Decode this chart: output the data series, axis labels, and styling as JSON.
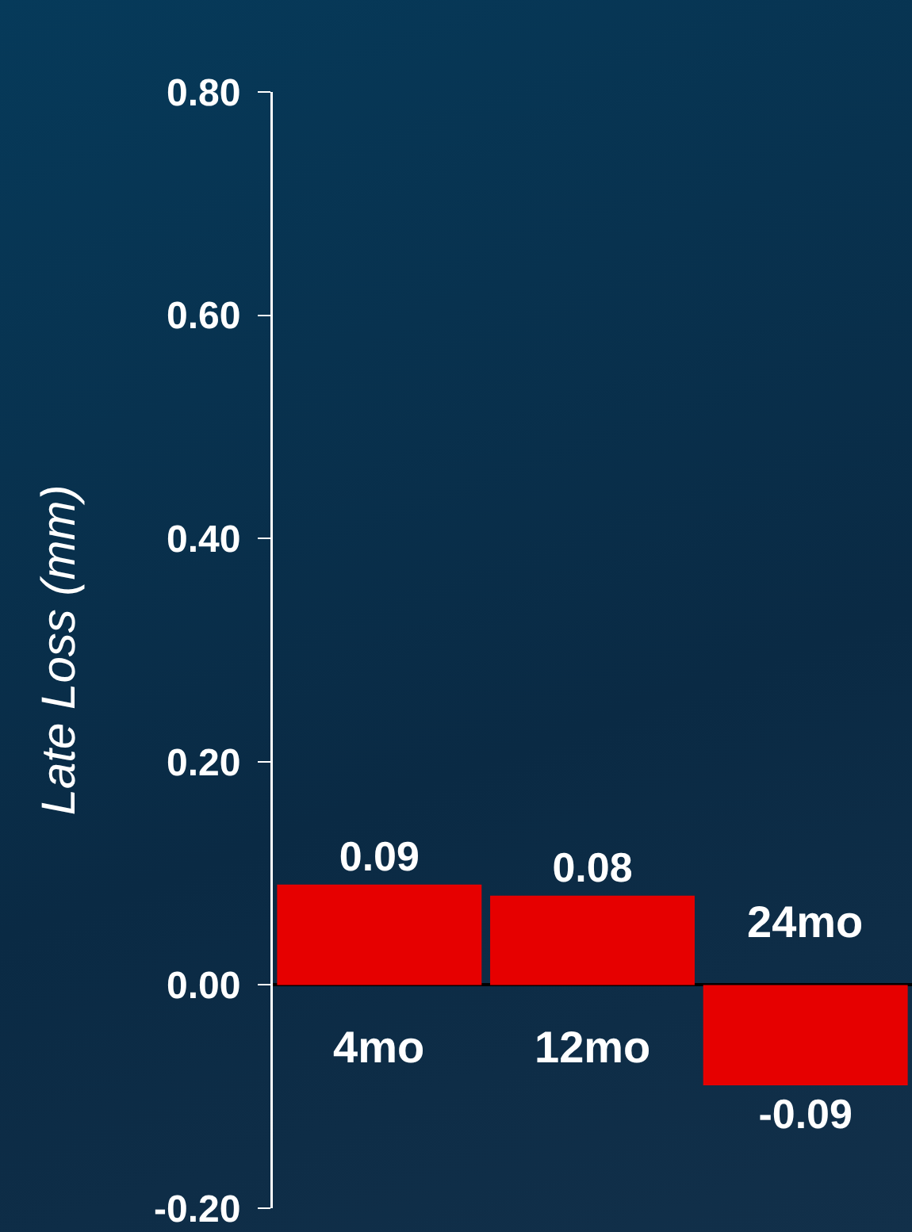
{
  "chart_data": {
    "type": "bar",
    "ylabel": "Late Loss (mm)",
    "categories": [
      "4mo",
      "12mo",
      "24mo"
    ],
    "values": [
      0.09,
      0.08,
      -0.09
    ],
    "color": "#e60000",
    "data_labels": true,
    "ylim": [
      -0.2,
      0.8
    ],
    "yticks": [
      {
        "value": -0.2,
        "label": "-0.20"
      },
      {
        "value": 0,
        "label": "0.00"
      },
      {
        "value": 0.2,
        "label": "0.20"
      },
      {
        "value": 0.4,
        "label": "0.40"
      },
      {
        "value": 0.6,
        "label": "0.60"
      },
      {
        "value": 0.8,
        "label": "0.80"
      }
    ],
    "grid": false
  }
}
